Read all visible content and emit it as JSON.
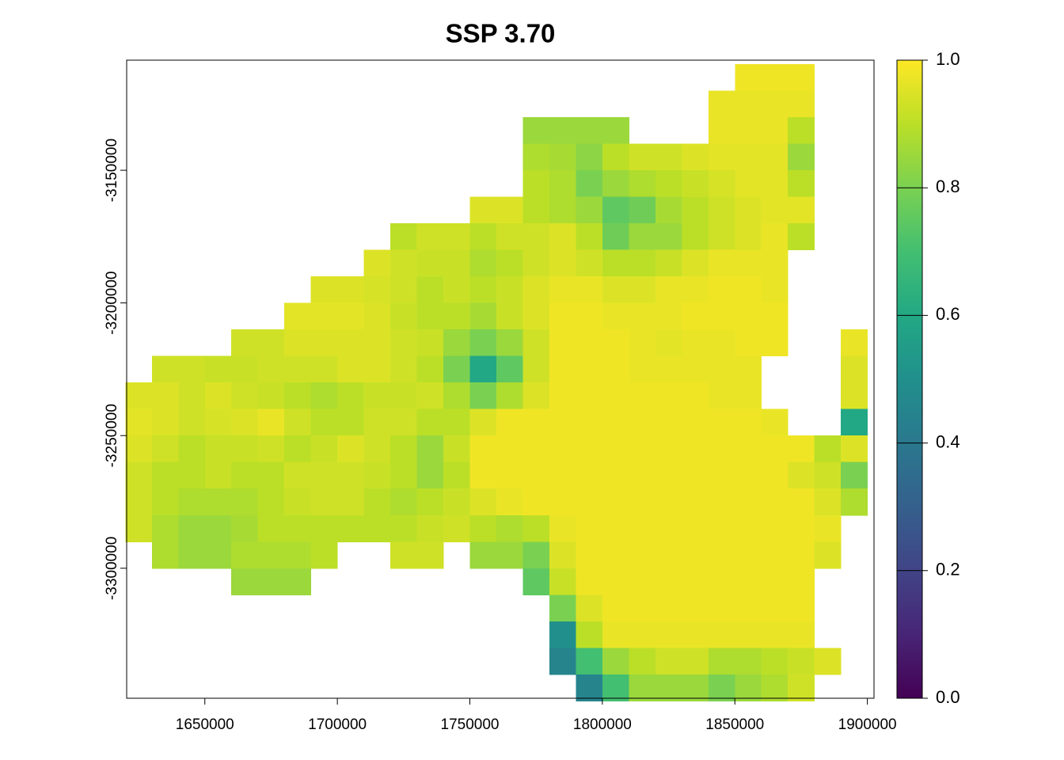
{
  "chart_data": {
    "type": "raster",
    "title": "SSP 3.70",
    "x": [
      1625000,
      1635000,
      1645000,
      1655000,
      1665000,
      1675000,
      1685000,
      1695000,
      1705000,
      1715000,
      1725000,
      1735000,
      1745000,
      1755000,
      1765000,
      1775000,
      1785000,
      1795000,
      1805000,
      1815000,
      1825000,
      1835000,
      1845000,
      1855000,
      1865000,
      1875000,
      1885000,
      1895000
    ],
    "y": [
      -3115000,
      -3125000,
      -3135000,
      -3145000,
      -3155000,
      -3165000,
      -3175000,
      -3185000,
      -3195000,
      -3205000,
      -3215000,
      -3225000,
      -3235000,
      -3245000,
      -3255000,
      -3265000,
      -3275000,
      -3285000,
      -3295000,
      -3305000,
      -3315000,
      -3325000,
      -3335000,
      -3345000
    ],
    "values": [
      [
        null,
        null,
        null,
        null,
        null,
        null,
        null,
        null,
        null,
        null,
        null,
        null,
        null,
        null,
        null,
        null,
        null,
        null,
        null,
        null,
        null,
        null,
        null,
        0.98,
        0.98,
        0.98,
        null,
        null
      ],
      [
        null,
        null,
        null,
        null,
        null,
        null,
        null,
        null,
        null,
        null,
        null,
        null,
        null,
        null,
        null,
        null,
        null,
        null,
        null,
        null,
        null,
        null,
        0.97,
        0.97,
        0.97,
        0.97,
        null,
        null
      ],
      [
        null,
        null,
        null,
        null,
        null,
        null,
        null,
        null,
        null,
        null,
        null,
        null,
        null,
        null,
        null,
        0.85,
        0.85,
        0.85,
        0.85,
        null,
        null,
        null,
        0.97,
        0.97,
        0.97,
        0.9,
        null,
        null
      ],
      [
        null,
        null,
        null,
        null,
        null,
        null,
        null,
        null,
        null,
        null,
        null,
        null,
        null,
        null,
        null,
        0.88,
        0.87,
        0.83,
        0.9,
        0.93,
        0.93,
        0.95,
        0.96,
        0.96,
        0.96,
        0.85,
        null,
        null
      ],
      [
        null,
        null,
        null,
        null,
        null,
        null,
        null,
        null,
        null,
        null,
        null,
        null,
        null,
        null,
        null,
        0.9,
        0.88,
        0.8,
        0.85,
        0.88,
        0.9,
        0.92,
        0.94,
        0.96,
        0.96,
        0.9,
        null,
        null
      ],
      [
        null,
        null,
        null,
        null,
        null,
        null,
        null,
        null,
        null,
        null,
        null,
        null,
        null,
        0.95,
        0.95,
        0.9,
        0.88,
        0.85,
        0.75,
        0.78,
        0.87,
        0.9,
        0.93,
        0.95,
        0.96,
        0.96,
        null,
        null
      ],
      [
        null,
        null,
        null,
        null,
        null,
        null,
        null,
        null,
        null,
        null,
        0.9,
        0.93,
        0.93,
        0.9,
        0.93,
        0.93,
        0.95,
        0.9,
        0.78,
        0.85,
        0.85,
        0.9,
        0.93,
        0.95,
        0.97,
        0.9,
        null,
        null
      ],
      [
        null,
        null,
        null,
        null,
        null,
        null,
        null,
        null,
        null,
        0.95,
        0.93,
        0.92,
        0.92,
        0.88,
        0.9,
        0.93,
        0.95,
        0.93,
        0.9,
        0.9,
        0.92,
        0.95,
        0.97,
        0.97,
        0.97,
        null,
        null,
        null
      ],
      [
        null,
        null,
        null,
        null,
        null,
        null,
        null,
        0.95,
        0.95,
        0.94,
        0.93,
        0.9,
        0.92,
        0.9,
        0.92,
        0.95,
        0.97,
        0.97,
        0.95,
        0.95,
        0.97,
        0.97,
        0.98,
        0.98,
        0.97,
        null,
        null,
        null
      ],
      [
        null,
        null,
        null,
        null,
        null,
        null,
        0.96,
        0.96,
        0.96,
        0.95,
        0.92,
        0.9,
        0.9,
        0.87,
        0.92,
        0.95,
        0.98,
        0.98,
        0.97,
        0.97,
        0.97,
        0.98,
        0.98,
        0.98,
        0.98,
        null,
        null,
        null
      ],
      [
        null,
        null,
        null,
        null,
        0.93,
        0.93,
        0.95,
        0.95,
        0.95,
        0.95,
        0.93,
        0.92,
        0.85,
        0.8,
        0.85,
        0.93,
        0.98,
        0.98,
        0.98,
        0.97,
        0.96,
        0.97,
        0.97,
        0.98,
        0.98,
        null,
        null,
        0.97
      ],
      [
        null,
        0.93,
        0.93,
        0.92,
        0.92,
        0.93,
        0.93,
        0.93,
        0.95,
        0.95,
        0.93,
        0.9,
        0.8,
        0.6,
        0.75,
        0.93,
        0.98,
        0.98,
        0.98,
        0.97,
        0.97,
        0.97,
        0.97,
        0.97,
        null,
        null,
        null,
        0.95
      ],
      [
        0.95,
        0.95,
        0.93,
        0.95,
        0.93,
        0.92,
        0.9,
        0.88,
        0.9,
        0.92,
        0.92,
        0.93,
        0.88,
        0.8,
        0.88,
        0.95,
        0.98,
        0.98,
        0.98,
        0.98,
        0.98,
        0.98,
        0.97,
        0.97,
        null,
        null,
        null,
        0.95
      ],
      [
        0.96,
        0.95,
        0.93,
        0.94,
        0.95,
        0.97,
        0.93,
        0.9,
        0.9,
        0.93,
        0.93,
        0.9,
        0.9,
        0.95,
        0.98,
        0.98,
        0.98,
        0.98,
        0.98,
        0.98,
        0.98,
        0.98,
        0.98,
        0.98,
        0.97,
        null,
        null,
        0.6
      ],
      [
        0.95,
        0.93,
        0.9,
        0.92,
        0.92,
        0.93,
        0.9,
        0.92,
        0.95,
        0.93,
        0.9,
        0.85,
        0.92,
        0.98,
        0.98,
        0.98,
        0.98,
        0.98,
        0.98,
        0.98,
        0.98,
        0.98,
        0.98,
        0.98,
        0.98,
        0.98,
        0.9,
        0.95
      ],
      [
        0.93,
        0.9,
        0.9,
        0.92,
        0.9,
        0.9,
        0.93,
        0.93,
        0.93,
        0.92,
        0.9,
        0.85,
        0.9,
        0.98,
        0.98,
        0.98,
        0.98,
        0.98,
        0.98,
        0.98,
        0.98,
        0.98,
        0.98,
        0.98,
        0.98,
        0.95,
        0.93,
        0.8
      ],
      [
        0.93,
        0.9,
        0.88,
        0.88,
        0.88,
        0.9,
        0.92,
        0.93,
        0.93,
        0.9,
        0.88,
        0.9,
        0.92,
        0.95,
        0.97,
        0.98,
        0.98,
        0.98,
        0.98,
        0.98,
        0.98,
        0.98,
        0.98,
        0.98,
        0.98,
        0.98,
        0.95,
        0.88
      ],
      [
        0.93,
        0.88,
        0.85,
        0.85,
        0.87,
        0.9,
        0.9,
        0.9,
        0.9,
        0.9,
        0.9,
        0.92,
        0.93,
        0.9,
        0.88,
        0.9,
        0.97,
        0.98,
        0.98,
        0.98,
        0.98,
        0.98,
        0.98,
        0.98,
        0.98,
        0.98,
        0.97,
        null
      ],
      [
        null,
        0.88,
        0.85,
        0.85,
        0.88,
        0.88,
        0.88,
        0.9,
        null,
        null,
        0.93,
        0.93,
        null,
        0.85,
        0.85,
        0.8,
        0.95,
        0.98,
        0.98,
        0.98,
        0.98,
        0.98,
        0.98,
        0.98,
        0.98,
        0.98,
        0.95,
        null
      ],
      [
        null,
        null,
        null,
        null,
        0.85,
        0.85,
        0.85,
        null,
        null,
        null,
        null,
        null,
        null,
        null,
        null,
        0.75,
        0.92,
        0.98,
        0.98,
        0.98,
        0.98,
        0.98,
        0.98,
        0.98,
        0.98,
        0.98,
        null,
        null
      ],
      [
        null,
        null,
        null,
        null,
        null,
        null,
        null,
        null,
        null,
        null,
        null,
        null,
        null,
        null,
        null,
        null,
        0.8,
        0.95,
        0.98,
        0.98,
        0.98,
        0.98,
        0.98,
        0.98,
        0.98,
        0.98,
        null,
        null
      ],
      [
        null,
        null,
        null,
        null,
        null,
        null,
        null,
        null,
        null,
        null,
        null,
        null,
        null,
        null,
        null,
        null,
        0.5,
        0.9,
        0.97,
        0.97,
        0.97,
        0.97,
        0.97,
        0.97,
        0.97,
        0.97,
        null,
        null
      ],
      [
        null,
        null,
        null,
        null,
        null,
        null,
        null,
        null,
        null,
        null,
        null,
        null,
        null,
        null,
        null,
        null,
        0.45,
        0.7,
        0.85,
        0.9,
        0.93,
        0.93,
        0.88,
        0.88,
        0.9,
        0.92,
        0.95,
        null
      ],
      [
        null,
        null,
        null,
        null,
        null,
        null,
        null,
        null,
        null,
        null,
        null,
        null,
        null,
        null,
        null,
        null,
        null,
        0.45,
        0.7,
        0.85,
        0.85,
        0.85,
        0.8,
        0.85,
        0.88,
        0.93,
        null,
        null
      ]
    ],
    "xlim": [
      1620500,
      1902500
    ],
    "ylim": [
      -3349000,
      -3108500
    ],
    "xticks": [
      1650000,
      1700000,
      1750000,
      1800000,
      1850000,
      1900000
    ],
    "yticks": [
      -3150000,
      -3200000,
      -3250000,
      -3300000
    ],
    "zlim": [
      0,
      1
    ],
    "zticks": [
      {
        "value": 0,
        "label": "0.0"
      },
      0.2,
      0.4,
      0.6,
      0.8,
      {
        "value": 1,
        "label": "1.0"
      }
    ],
    "colors": [
      "#440154",
      "#482576",
      "#414487",
      "#35608D",
      "#2A788E",
      "#21908C",
      "#22A884",
      "#43BF71",
      "#7AD151",
      "#BBDF27",
      "#FDE725"
    ]
  }
}
